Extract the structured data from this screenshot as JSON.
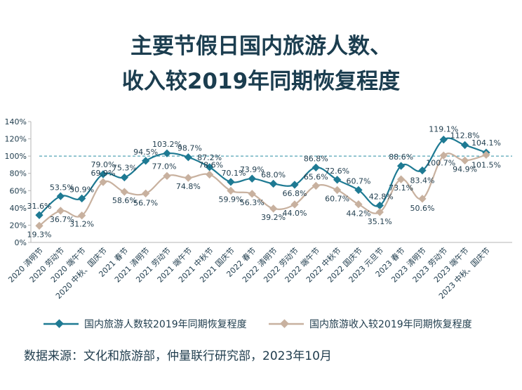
{
  "chart_data": {
    "type": "line",
    "title_lines": [
      "主要节假日国内旅游人数、",
      "收入较2019年同期恢复程度"
    ],
    "categories": [
      "2020 清明节",
      "2020 劳动节",
      "2020 端午节",
      "2020 中秋、国庆节",
      "2021 春节",
      "2021 清明节",
      "2021 劳动节",
      "2021 端午节",
      "2021 中秋节",
      "2021 国庆节",
      "2022 春节",
      "2022 清明节",
      "2022 劳动节",
      "2022 端午节",
      "2022 中秋节",
      "2022 国庆节",
      "2023 元旦节",
      "2023 春节",
      "2023 清明节",
      "2023 劳动节",
      "2023 端午节",
      "2023 中秋、国庆节"
    ],
    "y_ticks": [
      "0%",
      "20%",
      "40%",
      "60%",
      "80%",
      "100%",
      "120%",
      "140%"
    ],
    "ylim": [
      0,
      140
    ],
    "reference_line": 100,
    "series": [
      {
        "name": "国内旅游人数较2019年同期恢复程度",
        "color": "#1e7a93",
        "values": [
          31.6,
          53.5,
          50.9,
          79.0,
          75.3,
          94.5,
          103.2,
          98.7,
          87.2,
          70.1,
          73.9,
          68.0,
          66.8,
          86.8,
          72.6,
          60.7,
          42.8,
          88.6,
          83.4,
          119.1,
          112.8,
          104.1
        ],
        "labels": [
          "31.6%",
          "53.5%",
          "50.9%",
          "79.0%",
          "75.3%",
          "94.5%",
          "103.2%",
          "98.7%",
          "87.2%",
          "70.1%",
          "73.9%",
          "68.0%",
          "66.8%",
          "86.8%",
          "72.6%",
          "60.7%",
          "42.8%",
          "88.6%",
          "83.4%",
          "119.1%",
          "112.8%",
          "104.1%"
        ]
      },
      {
        "name": "国内旅游收入较2019年同期恢复程度",
        "color": "#c8b19f",
        "values": [
          19.3,
          36.7,
          31.2,
          69.9,
          58.6,
          56.7,
          77.0,
          74.8,
          78.6,
          59.9,
          56.3,
          39.2,
          44.0,
          65.6,
          60.7,
          44.2,
          35.1,
          73.1,
          50.6,
          100.7,
          94.9,
          101.5
        ],
        "labels": [
          "19.3%",
          "36.7%",
          "31.2%",
          "69.9%",
          "58.6%",
          "56.7%",
          "77.0%",
          "74.8%",
          "78.6%",
          "59.9%",
          "56.3%",
          "39.2%",
          "44.0%",
          "65.6%",
          "60.7%",
          "44.2%",
          "35.1%",
          "73.1%",
          "50.6%",
          "100.7%",
          "94.9%",
          "101.5%"
        ]
      }
    ],
    "source": "数据来源：文化和旅游部，仲量联行研究部，2023年10月"
  }
}
